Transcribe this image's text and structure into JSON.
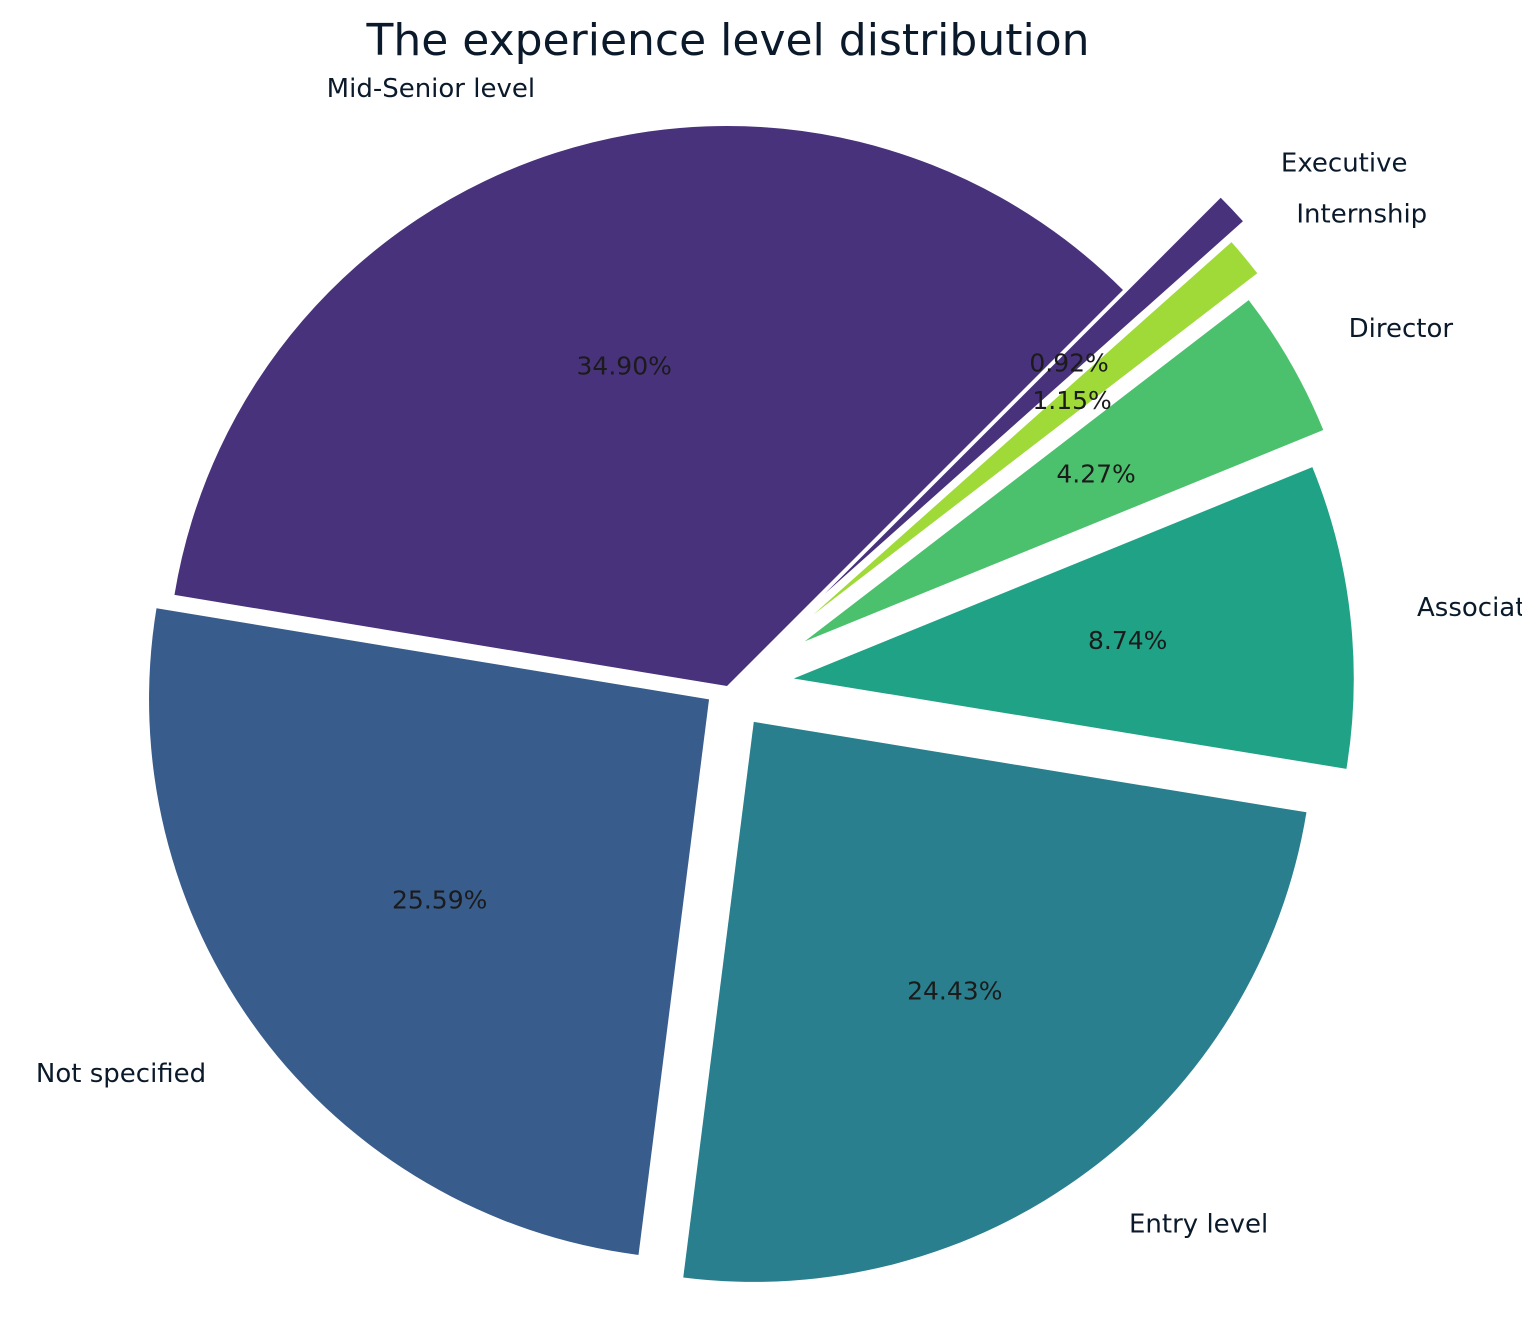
{
  "chart_data": {
    "type": "pie",
    "title": "The experience level distribution",
    "slices": [
      {
        "label": "Mid-Senior level",
        "value": 34.9,
        "pct_label": "34.90%",
        "color": "#48327c"
      },
      {
        "label": "Not specified",
        "value": 25.59,
        "pct_label": "25.59%",
        "color": "#385c8c"
      },
      {
        "label": "Entry level",
        "value": 24.43,
        "pct_label": "24.43%",
        "color": "#297f8d"
      },
      {
        "label": "Associate",
        "value": 8.74,
        "pct_label": "8.74%",
        "color": "#20a286"
      },
      {
        "label": "Director",
        "value": 4.27,
        "pct_label": "4.27%",
        "color": "#4bc16d"
      },
      {
        "label": "Internship",
        "value": 1.15,
        "pct_label": "1.15%",
        "color": "#a0da38"
      },
      {
        "label": "Executive",
        "value": 0.92,
        "pct_label": "0.92%",
        "color": "#48327c"
      }
    ],
    "start_angle_deg": 45,
    "direction": "counterclockwise",
    "legend": "none"
  }
}
